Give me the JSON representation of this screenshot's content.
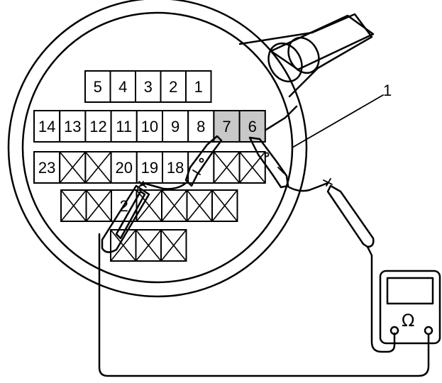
{
  "diagram": {
    "callout": {
      "label": "1"
    },
    "connector": {
      "rows": [
        {
          "cells": [
            {
              "label": "5",
              "type": "pin"
            },
            {
              "label": "4",
              "type": "pin"
            },
            {
              "label": "3",
              "type": "pin"
            },
            {
              "label": "2",
              "type": "pin"
            },
            {
              "label": "1",
              "type": "pin"
            }
          ]
        },
        {
          "cells": [
            {
              "label": "14",
              "type": "pin"
            },
            {
              "label": "13",
              "type": "pin"
            },
            {
              "label": "12",
              "type": "pin"
            },
            {
              "label": "11",
              "type": "pin"
            },
            {
              "label": "10",
              "type": "pin"
            },
            {
              "label": "9",
              "type": "pin"
            },
            {
              "label": "8",
              "type": "pin"
            },
            {
              "label": "7",
              "type": "probed"
            },
            {
              "label": "6",
              "type": "probed"
            }
          ]
        },
        {
          "cells": [
            {
              "label": "23",
              "type": "pin"
            },
            {
              "label": "",
              "type": "empty"
            },
            {
              "label": "",
              "type": "empty"
            },
            {
              "label": "20",
              "type": "pin"
            },
            {
              "label": "19",
              "type": "pin"
            },
            {
              "label": "18",
              "type": "pin"
            },
            {
              "label": "",
              "type": "pin"
            },
            {
              "label": "",
              "type": "empty"
            },
            {
              "label": "",
              "type": "empty"
            }
          ]
        },
        {
          "cells": [
            {
              "label": "",
              "type": "empty"
            },
            {
              "label": "",
              "type": "empty"
            },
            {
              "label": "2",
              "type": "pin"
            },
            {
              "label": "",
              "type": "empty"
            },
            {
              "label": "",
              "type": "empty"
            },
            {
              "label": "",
              "type": "empty"
            },
            {
              "label": "",
              "type": "empty"
            }
          ]
        },
        {
          "cells": [
            {
              "label": "",
              "type": "empty"
            },
            {
              "label": "",
              "type": "empty"
            },
            {
              "label": "",
              "type": "empty"
            }
          ]
        }
      ]
    },
    "meter": {
      "symbol": "Ω"
    },
    "colors": {
      "probed_pin": "#c8c8c8",
      "line": "#000000",
      "background": "#ffffff"
    }
  }
}
